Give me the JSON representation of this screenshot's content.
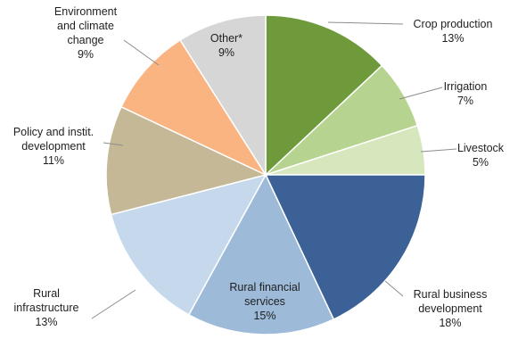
{
  "chart_data": {
    "type": "pie",
    "unit": "%",
    "slices": [
      {
        "label": "Crop production",
        "lines": [
          "Crop production"
        ],
        "value": 13,
        "value_label": "13%",
        "color": "#6e9a3c"
      },
      {
        "label": "Irrigation",
        "lines": [
          "Irrigation"
        ],
        "value": 7,
        "value_label": "7%",
        "color": "#b6d490"
      },
      {
        "label": "Livestock",
        "lines": [
          "Livestock"
        ],
        "value": 5,
        "value_label": "5%",
        "color": "#d7e7bd"
      },
      {
        "label": "Rural business development",
        "lines": [
          "Rural business",
          "development"
        ],
        "value": 18,
        "value_label": "18%",
        "color": "#3b6197"
      },
      {
        "label": "Rural financial services",
        "lines": [
          "Rural financial",
          "services"
        ],
        "value": 15,
        "value_label": "15%",
        "color": "#9dbad9"
      },
      {
        "label": "Rural infrastructure",
        "lines": [
          "Rural",
          "infrastructure"
        ],
        "value": 13,
        "value_label": "13%",
        "color": "#c6d8ec"
      },
      {
        "label": "Policy and instit. development",
        "lines": [
          "Policy and instit.",
          "development"
        ],
        "value": 11,
        "value_label": "11%",
        "color": "#c4b896"
      },
      {
        "label": "Environment and climate change",
        "lines": [
          "Environment",
          "and climate",
          "change"
        ],
        "value": 9,
        "value_label": "9%",
        "color": "#f9b482"
      },
      {
        "label": "Other*",
        "lines": [
          "Other*"
        ],
        "value": 9,
        "value_label": "9%",
        "color": "#d6d6d6"
      }
    ]
  }
}
